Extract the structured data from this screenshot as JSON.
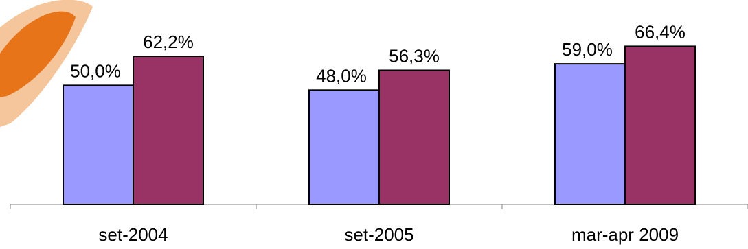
{
  "chart_data": {
    "type": "bar",
    "categories": [
      "set-2004",
      "set-2005",
      "mar-apr 2009"
    ],
    "series": [
      {
        "values": [
          50.0,
          48.0,
          59.0
        ],
        "labels": [
          "50,0%",
          "48,0%",
          "59,0%"
        ],
        "color": "#9999ff"
      },
      {
        "values": [
          62.2,
          56.3,
          66.4
        ],
        "labels": [
          "62,2%",
          "56,3%",
          "66,4%"
        ],
        "color": "#993366"
      }
    ],
    "title": "",
    "xlabel": "",
    "ylabel": "",
    "ylim": [
      0,
      100
    ],
    "grid": false,
    "legend": "none"
  },
  "decor": {
    "logo_colors": [
      "#e8741a",
      "#f2b27a"
    ]
  }
}
